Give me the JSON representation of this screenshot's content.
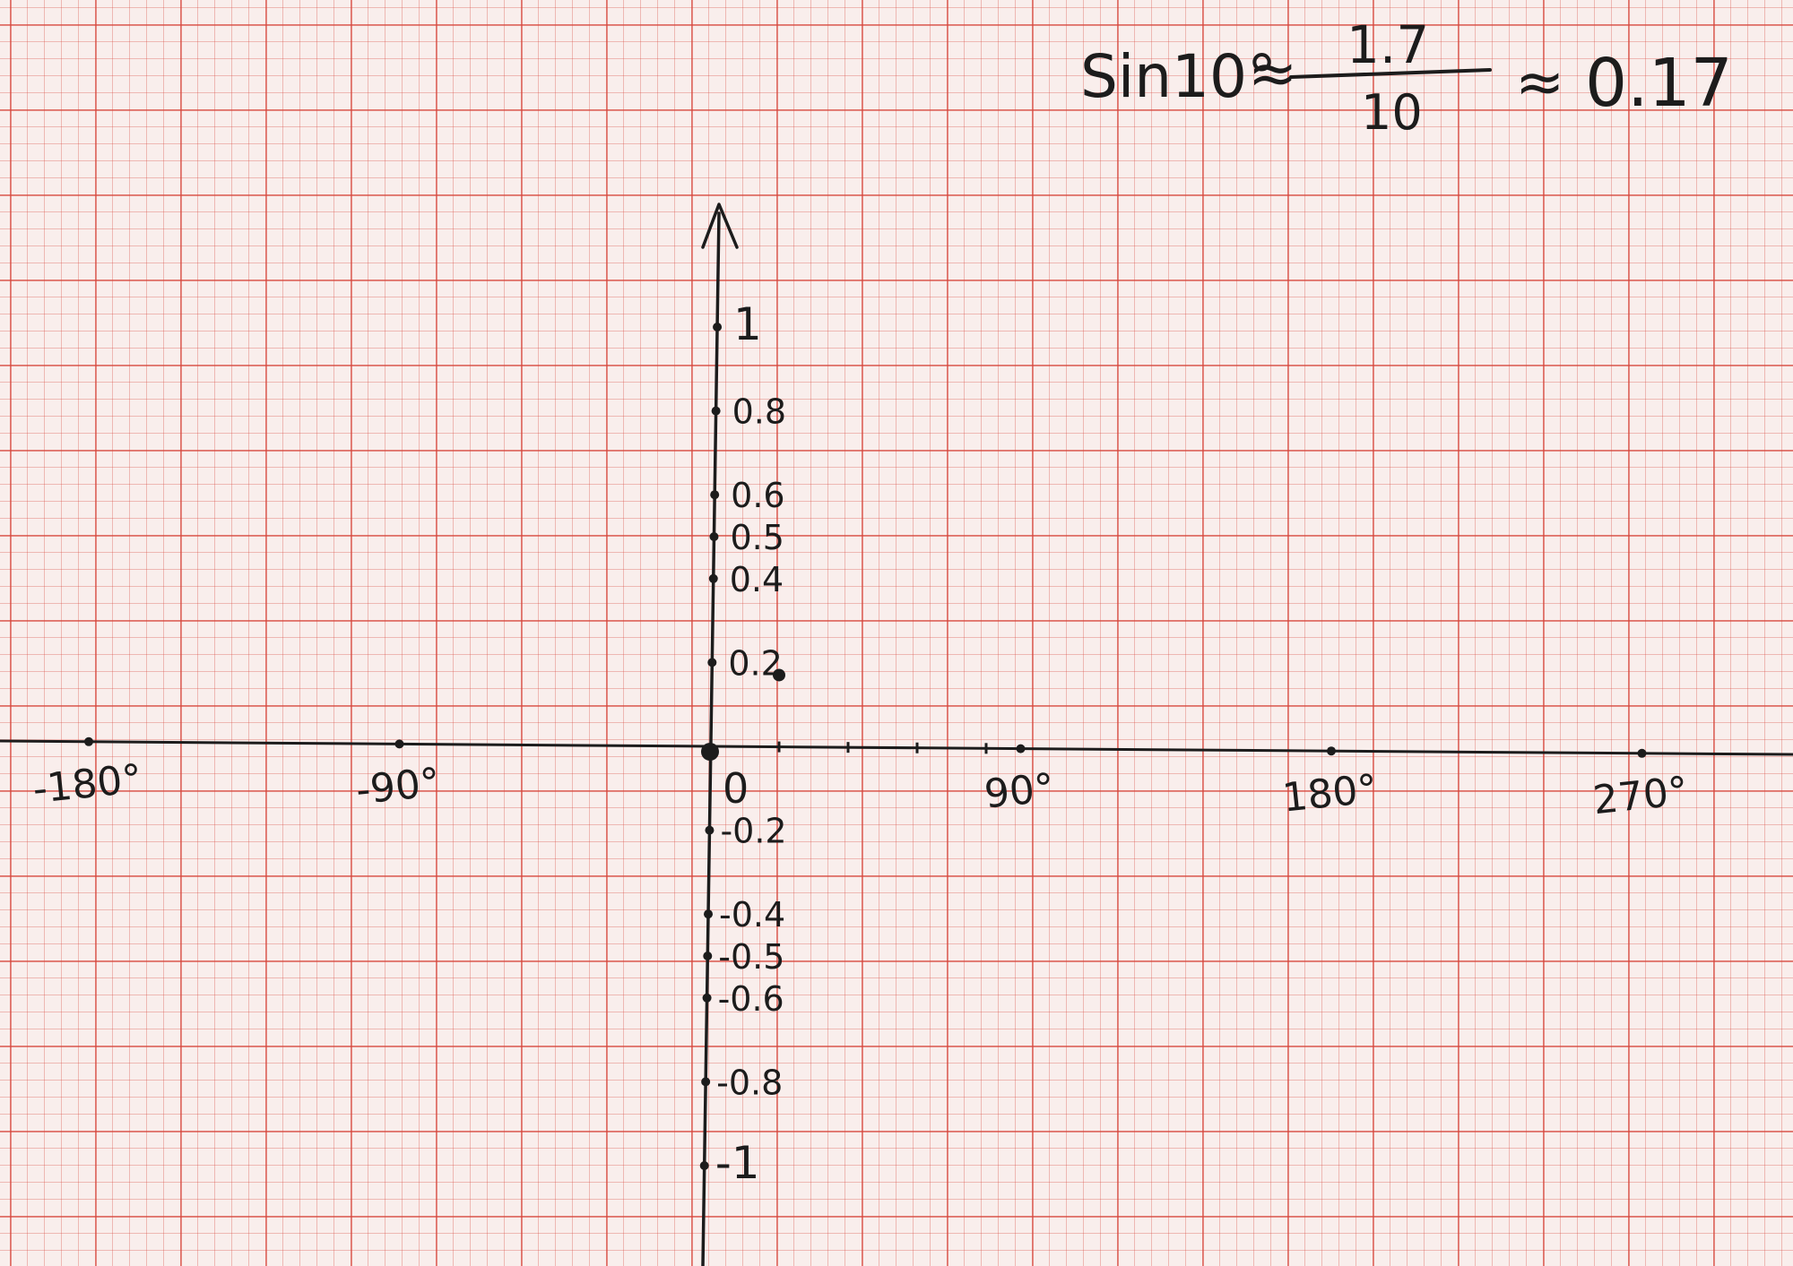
{
  "formula": {
    "lhs": "Sin10°",
    "approx1": "≈",
    "numerator": "1.7",
    "denominator": "10",
    "approx2": "≈",
    "result": "0.17"
  },
  "origin_label": "0",
  "chart_data": {
    "type": "line",
    "title": "",
    "xlabel": "",
    "ylabel": "",
    "x_unit": "degrees",
    "xlim": [
      -180,
      270
    ],
    "ylim": [
      -1,
      1
    ],
    "x_ticks": [
      {
        "value": -180,
        "label": "-180°"
      },
      {
        "value": -90,
        "label": "-90°"
      },
      {
        "value": 90,
        "label": "90°"
      },
      {
        "value": 180,
        "label": "180°"
      },
      {
        "value": 270,
        "label": "270°"
      }
    ],
    "x_minor_ticks": [
      10,
      20,
      30,
      40,
      50,
      60,
      70,
      80
    ],
    "y_ticks": [
      {
        "value": 1,
        "label": "1"
      },
      {
        "value": 0.8,
        "label": "0.8"
      },
      {
        "value": 0.6,
        "label": "0.6"
      },
      {
        "value": 0.5,
        "label": "0.5"
      },
      {
        "value": 0.4,
        "label": "0.4"
      },
      {
        "value": 0.2,
        "label": "0.2"
      },
      {
        "value": -0.2,
        "label": "-0.2"
      },
      {
        "value": -0.4,
        "label": "-0.4"
      },
      {
        "value": -0.5,
        "label": "-0.5"
      },
      {
        "value": -0.6,
        "label": "-0.6"
      },
      {
        "value": -0.8,
        "label": "-0.8"
      },
      {
        "value": -1,
        "label": "-1"
      }
    ],
    "points": [
      {
        "x": 0,
        "y": 0
      },
      {
        "x": 20,
        "y": 0.17
      }
    ],
    "grid": true,
    "ink_color": "#1c1c1c",
    "grid_color": "#d6463c"
  }
}
